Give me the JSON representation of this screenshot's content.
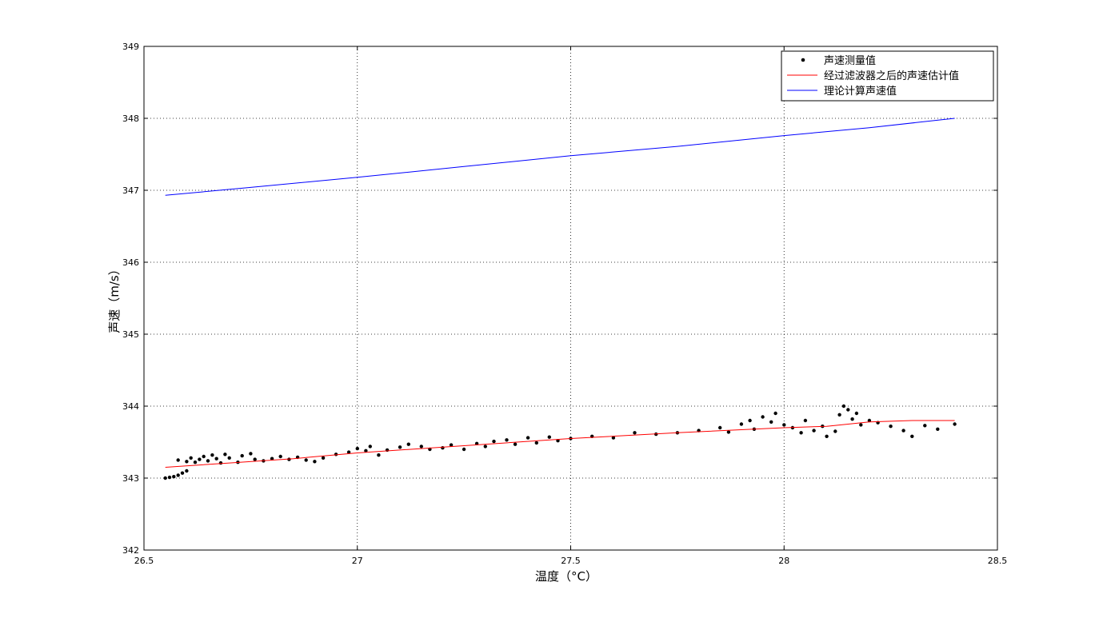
{
  "chart_data": {
    "type": "scatter",
    "title": "",
    "xlabel": "温度（°C）",
    "ylabel": "声速（m/s）",
    "xlim": [
      26.5,
      28.5
    ],
    "ylim": [
      342,
      349
    ],
    "xticks": [
      26.5,
      27,
      27.5,
      28,
      28.5
    ],
    "xtick_labels": [
      "26.5",
      "27",
      "27.5",
      "28",
      "28.5"
    ],
    "yticks": [
      342,
      343,
      344,
      345,
      346,
      347,
      348,
      349
    ],
    "ytick_labels": [
      "342",
      "343",
      "344",
      "345",
      "346",
      "347",
      "348",
      "349"
    ],
    "grid": true,
    "grid_style": "dotted",
    "legend_position": "top-right",
    "colors": {
      "measured": "#000000",
      "filtered": "#ff0000",
      "theoretical": "#0000ff"
    },
    "series": [
      {
        "name": "声速测量值",
        "kind": "scatter",
        "marker": "dot",
        "points": [
          [
            26.55,
            343.0
          ],
          [
            26.56,
            343.01
          ],
          [
            26.57,
            343.02
          ],
          [
            26.58,
            343.04
          ],
          [
            26.59,
            343.07
          ],
          [
            26.6,
            343.1
          ],
          [
            26.58,
            343.25
          ],
          [
            26.6,
            343.23
          ],
          [
            26.61,
            343.28
          ],
          [
            26.62,
            343.22
          ],
          [
            26.63,
            343.26
          ],
          [
            26.64,
            343.3
          ],
          [
            26.65,
            343.24
          ],
          [
            26.66,
            343.32
          ],
          [
            26.67,
            343.27
          ],
          [
            26.68,
            343.21
          ],
          [
            26.69,
            343.33
          ],
          [
            26.7,
            343.28
          ],
          [
            26.72,
            343.22
          ],
          [
            26.73,
            343.31
          ],
          [
            26.75,
            343.34
          ],
          [
            26.76,
            343.26
          ],
          [
            26.78,
            343.24
          ],
          [
            26.8,
            343.27
          ],
          [
            26.82,
            343.3
          ],
          [
            26.84,
            343.26
          ],
          [
            26.86,
            343.29
          ],
          [
            26.88,
            343.25
          ],
          [
            26.9,
            343.23
          ],
          [
            26.92,
            343.28
          ],
          [
            26.95,
            343.33
          ],
          [
            26.98,
            343.36
          ],
          [
            27.0,
            343.41
          ],
          [
            27.02,
            343.38
          ],
          [
            27.03,
            343.44
          ],
          [
            27.05,
            343.32
          ],
          [
            27.07,
            343.39
          ],
          [
            27.1,
            343.43
          ],
          [
            27.12,
            343.47
          ],
          [
            27.15,
            343.44
          ],
          [
            27.17,
            343.4
          ],
          [
            27.2,
            343.42
          ],
          [
            27.22,
            343.46
          ],
          [
            27.25,
            343.4
          ],
          [
            27.28,
            343.48
          ],
          [
            27.3,
            343.44
          ],
          [
            27.32,
            343.51
          ],
          [
            27.35,
            343.53
          ],
          [
            27.37,
            343.47
          ],
          [
            27.4,
            343.56
          ],
          [
            27.42,
            343.49
          ],
          [
            27.45,
            343.57
          ],
          [
            27.47,
            343.52
          ],
          [
            27.5,
            343.55
          ],
          [
            27.55,
            343.58
          ],
          [
            27.6,
            343.56
          ],
          [
            27.65,
            343.63
          ],
          [
            27.7,
            343.61
          ],
          [
            27.75,
            343.63
          ],
          [
            27.8,
            343.66
          ],
          [
            27.85,
            343.7
          ],
          [
            27.87,
            343.64
          ],
          [
            27.9,
            343.75
          ],
          [
            27.92,
            343.8
          ],
          [
            27.93,
            343.68
          ],
          [
            27.95,
            343.85
          ],
          [
            27.97,
            343.78
          ],
          [
            27.98,
            343.9
          ],
          [
            28.0,
            343.74
          ],
          [
            28.02,
            343.7
          ],
          [
            28.04,
            343.63
          ],
          [
            28.05,
            343.8
          ],
          [
            28.07,
            343.66
          ],
          [
            28.09,
            343.72
          ],
          [
            28.1,
            343.58
          ],
          [
            28.12,
            343.65
          ],
          [
            28.13,
            343.88
          ],
          [
            28.14,
            344.0
          ],
          [
            28.15,
            343.95
          ],
          [
            28.16,
            343.82
          ],
          [
            28.17,
            343.9
          ],
          [
            28.18,
            343.74
          ],
          [
            28.2,
            343.8
          ],
          [
            28.22,
            343.77
          ],
          [
            28.25,
            343.72
          ],
          [
            28.28,
            343.66
          ],
          [
            28.3,
            343.58
          ],
          [
            28.33,
            343.73
          ],
          [
            28.36,
            343.68
          ],
          [
            28.4,
            343.75
          ]
        ]
      },
      {
        "name": "经过滤波器之后的声速估计值",
        "kind": "line",
        "points": [
          [
            26.55,
            343.15
          ],
          [
            26.7,
            343.21
          ],
          [
            26.85,
            343.27
          ],
          [
            27.0,
            343.35
          ],
          [
            27.25,
            343.45
          ],
          [
            27.5,
            343.55
          ],
          [
            27.75,
            343.63
          ],
          [
            28.0,
            343.7
          ],
          [
            28.1,
            343.72
          ],
          [
            28.2,
            343.78
          ],
          [
            28.3,
            343.8
          ],
          [
            28.4,
            343.8
          ]
        ]
      },
      {
        "name": "理论计算声速值",
        "kind": "line",
        "points": [
          [
            26.55,
            346.93
          ],
          [
            26.75,
            347.04
          ],
          [
            27.0,
            347.18
          ],
          [
            27.25,
            347.33
          ],
          [
            27.5,
            347.48
          ],
          [
            27.75,
            347.61
          ],
          [
            28.0,
            347.76
          ],
          [
            28.2,
            347.87
          ],
          [
            28.4,
            348.0
          ]
        ]
      }
    ]
  }
}
